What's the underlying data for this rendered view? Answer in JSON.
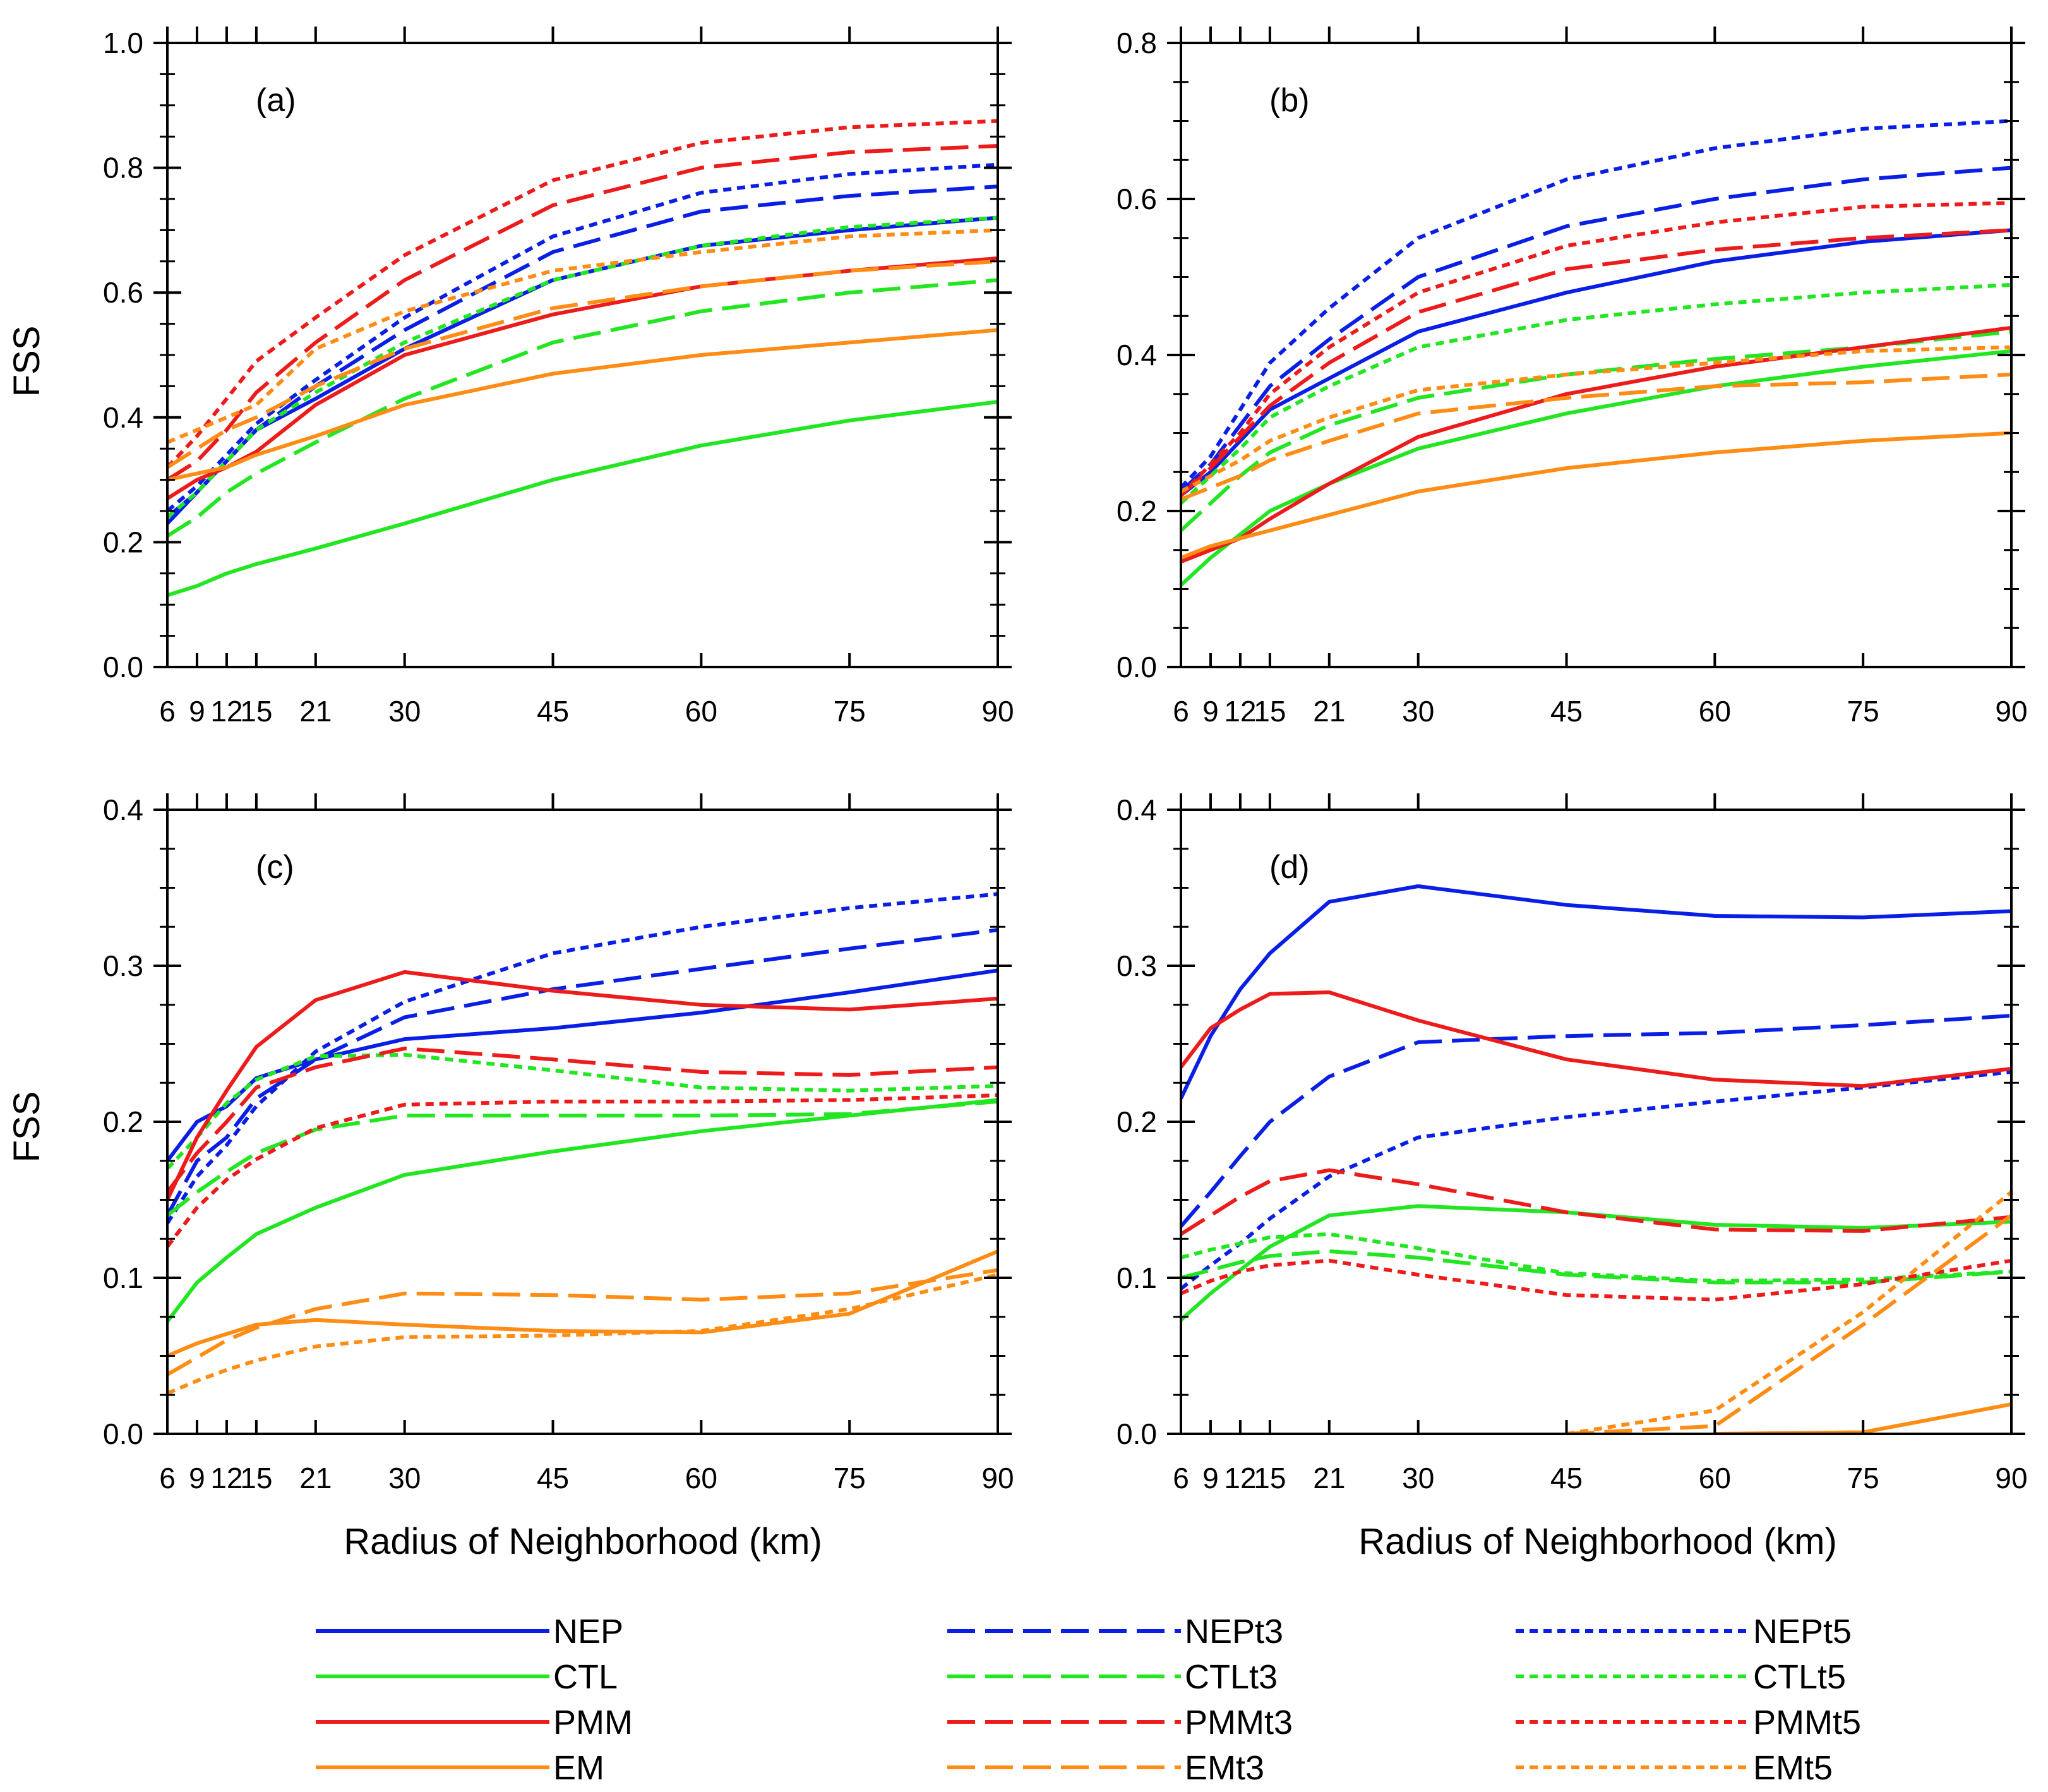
{
  "figure": {
    "ylabel": "FSS",
    "xlabel": "Radius of Neighborhood (km)"
  },
  "series_styles": {
    "NEP": {
      "color": "#0a1fe6",
      "dash": "solid"
    },
    "NEPt3": {
      "color": "#0a1fe6",
      "dash": "dashed"
    },
    "NEPt5": {
      "color": "#0a1fe6",
      "dash": "dotted"
    },
    "CTL": {
      "color": "#22e622",
      "dash": "solid"
    },
    "CTLt3": {
      "color": "#22e622",
      "dash": "dashed"
    },
    "CTLt5": {
      "color": "#22e622",
      "dash": "dotted"
    },
    "PMM": {
      "color": "#ec1c1c",
      "dash": "solid"
    },
    "PMMt3": {
      "color": "#ec1c1c",
      "dash": "dashed"
    },
    "PMMt5": {
      "color": "#ec1c1c",
      "dash": "dotted"
    },
    "EM": {
      "color": "#ff8c14",
      "dash": "solid"
    },
    "EMt3": {
      "color": "#ff8c14",
      "dash": "dashed"
    },
    "EMt5": {
      "color": "#ff8c14",
      "dash": "dotted"
    }
  },
  "legend": {
    "columns": [
      [
        "NEP",
        "CTL",
        "PMM",
        "EM"
      ],
      [
        "NEPt3",
        "CTLt3",
        "PMMt3",
        "EMt3"
      ],
      [
        "NEPt5",
        "CTLt5",
        "PMMt5",
        "EMt5"
      ]
    ],
    "placement": "bottom"
  },
  "chart_data": [
    {
      "type": "line",
      "label": "(a)",
      "position": "top-left",
      "xlabel": "",
      "ylabel": "FSS",
      "x": [
        6,
        9,
        12,
        15,
        21,
        30,
        45,
        60,
        75,
        90
      ],
      "x_ticks": [
        "6",
        "9",
        "12",
        "15",
        "21",
        "30",
        "45",
        "60",
        "75",
        "90"
      ],
      "xlim": [
        6,
        90
      ],
      "ylim": [
        0,
        1.0
      ],
      "y_ticks": [
        "0.0",
        "0.2",
        "0.4",
        "0.6",
        "0.8",
        "1.0"
      ],
      "series": [
        {
          "name": "NEP",
          "values": [
            0.23,
            0.28,
            0.33,
            0.38,
            0.43,
            0.51,
            0.62,
            0.675,
            0.7,
            0.72
          ]
        },
        {
          "name": "NEPt3",
          "values": [
            0.24,
            0.28,
            0.33,
            0.38,
            0.45,
            0.54,
            0.665,
            0.73,
            0.755,
            0.77
          ]
        },
        {
          "name": "NEPt5",
          "values": [
            0.25,
            0.29,
            0.34,
            0.39,
            0.46,
            0.56,
            0.69,
            0.76,
            0.79,
            0.805
          ]
        },
        {
          "name": "CTL",
          "values": [
            0.115,
            0.13,
            0.15,
            0.165,
            0.19,
            0.23,
            0.3,
            0.355,
            0.395,
            0.425
          ]
        },
        {
          "name": "CTLt3",
          "values": [
            0.21,
            0.24,
            0.28,
            0.31,
            0.36,
            0.43,
            0.52,
            0.57,
            0.6,
            0.62
          ]
        },
        {
          "name": "CTLt5",
          "values": [
            0.24,
            0.28,
            0.33,
            0.38,
            0.44,
            0.52,
            0.62,
            0.675,
            0.705,
            0.72
          ]
        },
        {
          "name": "PMM",
          "values": [
            0.27,
            0.3,
            0.32,
            0.345,
            0.42,
            0.5,
            0.565,
            0.61,
            0.635,
            0.655
          ]
        },
        {
          "name": "PMMt3",
          "values": [
            0.3,
            0.33,
            0.38,
            0.44,
            0.52,
            0.62,
            0.74,
            0.8,
            0.825,
            0.835
          ]
        },
        {
          "name": "PMMt5",
          "values": [
            0.32,
            0.37,
            0.43,
            0.49,
            0.56,
            0.66,
            0.78,
            0.84,
            0.865,
            0.875
          ]
        },
        {
          "name": "EM",
          "values": [
            0.3,
            0.31,
            0.32,
            0.34,
            0.37,
            0.42,
            0.47,
            0.5,
            0.52,
            0.54
          ]
        },
        {
          "name": "EMt3",
          "values": [
            0.32,
            0.35,
            0.38,
            0.4,
            0.45,
            0.51,
            0.575,
            0.61,
            0.635,
            0.65
          ]
        },
        {
          "name": "EMt5",
          "values": [
            0.36,
            0.38,
            0.4,
            0.42,
            0.51,
            0.57,
            0.635,
            0.665,
            0.69,
            0.7
          ]
        }
      ]
    },
    {
      "type": "line",
      "label": "(b)",
      "position": "top-right",
      "xlabel": "",
      "ylabel": "",
      "x": [
        6,
        9,
        12,
        15,
        21,
        30,
        45,
        60,
        75,
        90
      ],
      "x_ticks": [
        "6",
        "9",
        "12",
        "15",
        "21",
        "30",
        "45",
        "60",
        "75",
        "90"
      ],
      "xlim": [
        6,
        90
      ],
      "ylim": [
        0,
        0.8
      ],
      "y_ticks": [
        "0.0",
        "0.2",
        "0.4",
        "0.6",
        "0.8"
      ],
      "series": [
        {
          "name": "NEP",
          "values": [
            0.22,
            0.25,
            0.29,
            0.33,
            0.37,
            0.43,
            0.48,
            0.52,
            0.545,
            0.56
          ]
        },
        {
          "name": "NEPt3",
          "values": [
            0.225,
            0.26,
            0.31,
            0.36,
            0.42,
            0.5,
            0.565,
            0.6,
            0.625,
            0.64
          ]
        },
        {
          "name": "NEPt5",
          "values": [
            0.23,
            0.27,
            0.33,
            0.39,
            0.46,
            0.55,
            0.625,
            0.665,
            0.69,
            0.7
          ]
        },
        {
          "name": "CTL",
          "values": [
            0.105,
            0.14,
            0.17,
            0.2,
            0.235,
            0.28,
            0.325,
            0.36,
            0.385,
            0.405
          ]
        },
        {
          "name": "CTLt3",
          "values": [
            0.175,
            0.21,
            0.245,
            0.275,
            0.31,
            0.345,
            0.375,
            0.395,
            0.41,
            0.43
          ]
        },
        {
          "name": "CTLt5",
          "values": [
            0.21,
            0.245,
            0.28,
            0.32,
            0.36,
            0.41,
            0.445,
            0.465,
            0.48,
            0.49
          ]
        },
        {
          "name": "PMM",
          "values": [
            0.135,
            0.15,
            0.165,
            0.19,
            0.235,
            0.295,
            0.35,
            0.385,
            0.41,
            0.435
          ]
        },
        {
          "name": "PMMt3",
          "values": [
            0.22,
            0.255,
            0.295,
            0.335,
            0.39,
            0.455,
            0.51,
            0.535,
            0.55,
            0.56
          ]
        },
        {
          "name": "PMMt5",
          "values": [
            0.22,
            0.26,
            0.3,
            0.35,
            0.41,
            0.48,
            0.54,
            0.57,
            0.59,
            0.595
          ]
        },
        {
          "name": "EM",
          "values": [
            0.14,
            0.155,
            0.165,
            0.175,
            0.195,
            0.225,
            0.255,
            0.275,
            0.29,
            0.3
          ]
        },
        {
          "name": "EMt3",
          "values": [
            0.215,
            0.23,
            0.245,
            0.265,
            0.29,
            0.325,
            0.345,
            0.36,
            0.365,
            0.375
          ]
        },
        {
          "name": "EMt5",
          "values": [
            0.225,
            0.245,
            0.265,
            0.29,
            0.32,
            0.355,
            0.375,
            0.39,
            0.405,
            0.41
          ]
        }
      ]
    },
    {
      "type": "line",
      "label": "(c)",
      "position": "bottom-left",
      "xlabel": "Radius of Neighborhood (km)",
      "ylabel": "FSS",
      "x": [
        6,
        9,
        12,
        15,
        21,
        30,
        45,
        60,
        75,
        90
      ],
      "x_ticks": [
        "6",
        "9",
        "12",
        "15",
        "21",
        "30",
        "45",
        "60",
        "75",
        "90"
      ],
      "xlim": [
        6,
        90
      ],
      "ylim": [
        0,
        0.4
      ],
      "y_ticks": [
        "0.0",
        "0.1",
        "0.2",
        "0.3",
        "0.4"
      ],
      "series": [
        {
          "name": "NEP",
          "values": [
            0.175,
            0.2,
            0.21,
            0.228,
            0.24,
            0.253,
            0.26,
            0.27,
            0.283,
            0.297
          ]
        },
        {
          "name": "NEPt3",
          "values": [
            0.14,
            0.175,
            0.19,
            0.215,
            0.24,
            0.267,
            0.285,
            0.298,
            0.311,
            0.323
          ]
        },
        {
          "name": "NEPt5",
          "values": [
            0.135,
            0.165,
            0.185,
            0.21,
            0.245,
            0.277,
            0.308,
            0.325,
            0.337,
            0.346
          ]
        },
        {
          "name": "CTL",
          "values": [
            0.072,
            0.097,
            0.113,
            0.128,
            0.145,
            0.166,
            0.181,
            0.194,
            0.204,
            0.214
          ]
        },
        {
          "name": "CTLt3",
          "values": [
            0.14,
            0.155,
            0.168,
            0.18,
            0.195,
            0.204,
            0.204,
            0.204,
            0.205,
            0.213
          ]
        },
        {
          "name": "CTLt5",
          "values": [
            0.17,
            0.19,
            0.212,
            0.227,
            0.242,
            0.243,
            0.233,
            0.222,
            0.22,
            0.223
          ]
        },
        {
          "name": "PMM",
          "values": [
            0.15,
            0.19,
            0.22,
            0.248,
            0.278,
            0.296,
            0.284,
            0.275,
            0.272,
            0.279
          ]
        },
        {
          "name": "PMMt3",
          "values": [
            0.155,
            0.18,
            0.2,
            0.222,
            0.235,
            0.247,
            0.24,
            0.232,
            0.23,
            0.235
          ]
        },
        {
          "name": "PMMt5",
          "values": [
            0.12,
            0.145,
            0.163,
            0.176,
            0.196,
            0.211,
            0.213,
            0.213,
            0.214,
            0.217
          ]
        },
        {
          "name": "EM",
          "values": [
            0.05,
            0.058,
            0.064,
            0.07,
            0.073,
            0.07,
            0.066,
            0.065,
            0.077,
            0.117
          ]
        },
        {
          "name": "EMt3",
          "values": [
            0.038,
            0.049,
            0.06,
            0.068,
            0.08,
            0.09,
            0.089,
            0.086,
            0.09,
            0.105
          ]
        },
        {
          "name": "EMt5",
          "values": [
            0.026,
            0.034,
            0.041,
            0.047,
            0.056,
            0.062,
            0.063,
            0.066,
            0.08,
            0.102
          ]
        }
      ]
    },
    {
      "type": "line",
      "label": "(d)",
      "position": "bottom-right",
      "xlabel": "Radius of Neighborhood (km)",
      "ylabel": "",
      "x": [
        6,
        9,
        12,
        15,
        21,
        30,
        45,
        60,
        75,
        90
      ],
      "x_ticks": [
        "6",
        "9",
        "12",
        "15",
        "21",
        "30",
        "45",
        "60",
        "75",
        "90"
      ],
      "xlim": [
        6,
        90
      ],
      "ylim": [
        0,
        0.4
      ],
      "y_ticks": [
        "0.0",
        "0.1",
        "0.2",
        "0.3",
        "0.4"
      ],
      "series": [
        {
          "name": "NEP",
          "values": [
            0.215,
            0.255,
            0.285,
            0.308,
            0.341,
            0.351,
            0.339,
            0.332,
            0.331,
            0.335
          ]
        },
        {
          "name": "NEPt3",
          "values": [
            0.133,
            0.155,
            0.178,
            0.2,
            0.229,
            0.251,
            0.255,
            0.257,
            0.262,
            0.268
          ]
        },
        {
          "name": "NEPt5",
          "values": [
            0.093,
            0.108,
            0.122,
            0.138,
            0.165,
            0.19,
            0.203,
            0.213,
            0.222,
            0.232
          ]
        },
        {
          "name": "CTL",
          "values": [
            0.073,
            0.09,
            0.105,
            0.12,
            0.14,
            0.146,
            0.142,
            0.134,
            0.132,
            0.136
          ]
        },
        {
          "name": "CTLt3",
          "values": [
            0.1,
            0.105,
            0.11,
            0.114,
            0.117,
            0.113,
            0.102,
            0.097,
            0.097,
            0.104
          ]
        },
        {
          "name": "CTLt5",
          "values": [
            0.113,
            0.118,
            0.122,
            0.126,
            0.128,
            0.119,
            0.103,
            0.098,
            0.099,
            0.104
          ]
        },
        {
          "name": "PMM",
          "values": [
            0.235,
            0.26,
            0.272,
            0.282,
            0.283,
            0.265,
            0.24,
            0.227,
            0.223,
            0.234
          ]
        },
        {
          "name": "PMMt3",
          "values": [
            0.128,
            0.14,
            0.152,
            0.162,
            0.169,
            0.16,
            0.142,
            0.131,
            0.13,
            0.139
          ]
        },
        {
          "name": "PMMt5",
          "values": [
            0.09,
            0.098,
            0.104,
            0.108,
            0.111,
            0.102,
            0.089,
            0.086,
            0.096,
            0.111
          ]
        },
        {
          "name": "EM",
          "values": [
            null,
            null,
            null,
            null,
            null,
            null,
            null,
            0.0,
            0.001,
            0.019
          ]
        },
        {
          "name": "EMt3",
          "values": [
            null,
            null,
            null,
            null,
            null,
            null,
            0.0,
            0.005,
            0.07,
            0.14
          ]
        },
        {
          "name": "EMt5",
          "values": [
            null,
            null,
            null,
            null,
            null,
            null,
            0.0,
            0.015,
            0.078,
            0.155
          ]
        }
      ]
    }
  ]
}
